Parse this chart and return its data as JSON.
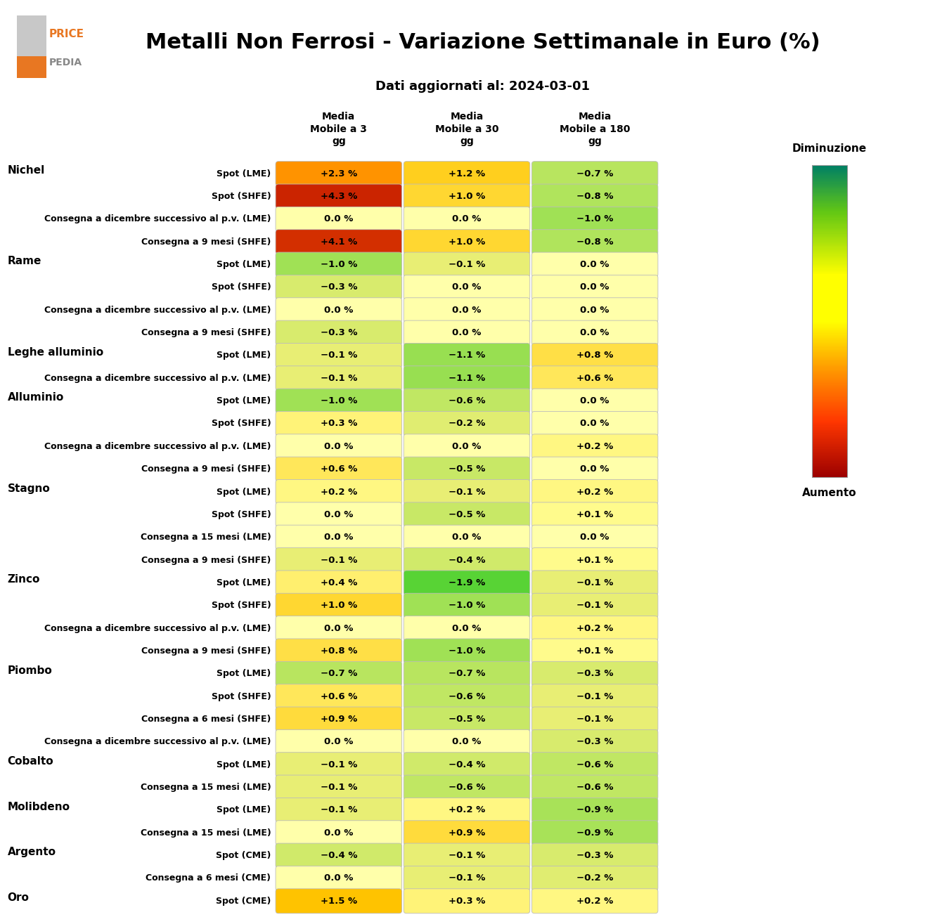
{
  "title": "Metalli Non Ferrosi - Variazione Settimanale in Euro (%)",
  "subtitle": "Dati aggiornati al: 2024-03-01",
  "col_headers": [
    "Media\nMobile a 3\ngg",
    "Media\nMobile a 30\ngg",
    "Media\nMobile a 180\ngg"
  ],
  "legend_top": "Diminuzione",
  "legend_bottom": "Aumento",
  "rows": [
    {
      "label": "Spot (LME)",
      "group": "Nichel",
      "vals": [
        2.3,
        1.2,
        -0.7
      ]
    },
    {
      "label": "Spot (SHFE)",
      "group": "Nichel",
      "vals": [
        4.3,
        1.0,
        -0.8
      ]
    },
    {
      "label": "Consegna a dicembre successivo al p.v. (LME)",
      "group": "Nichel",
      "vals": [
        0.0,
        0.0,
        -1.0
      ]
    },
    {
      "label": "Consegna a 9 mesi (SHFE)",
      "group": "Nichel",
      "vals": [
        4.1,
        1.0,
        -0.8
      ]
    },
    {
      "label": "Spot (LME)",
      "group": "Rame",
      "vals": [
        -1.0,
        -0.1,
        0.0
      ]
    },
    {
      "label": "Spot (SHFE)",
      "group": "Rame",
      "vals": [
        -0.3,
        0.0,
        0.0
      ]
    },
    {
      "label": "Consegna a dicembre successivo al p.v. (LME)",
      "group": "Rame",
      "vals": [
        0.0,
        0.0,
        0.0
      ]
    },
    {
      "label": "Consegna a 9 mesi (SHFE)",
      "group": "Rame",
      "vals": [
        -0.3,
        0.0,
        0.0
      ]
    },
    {
      "label": "Spot (LME)",
      "group": "Leghe alluminio",
      "vals": [
        -0.1,
        -1.1,
        0.8
      ]
    },
    {
      "label": "Consegna a dicembre successivo al p.v. (LME)",
      "group": "Leghe alluminio",
      "vals": [
        -0.1,
        -1.1,
        0.6
      ]
    },
    {
      "label": "Spot (LME)",
      "group": "Alluminio",
      "vals": [
        -1.0,
        -0.6,
        0.0
      ]
    },
    {
      "label": "Spot (SHFE)",
      "group": "Alluminio",
      "vals": [
        0.3,
        -0.2,
        0.0
      ]
    },
    {
      "label": "Consegna a dicembre successivo al p.v. (LME)",
      "group": "Alluminio",
      "vals": [
        0.0,
        0.0,
        0.2
      ]
    },
    {
      "label": "Consegna a 9 mesi (SHFE)",
      "group": "Alluminio",
      "vals": [
        0.6,
        -0.5,
        0.0
      ]
    },
    {
      "label": "Spot (LME)",
      "group": "Stagno",
      "vals": [
        0.2,
        -0.1,
        0.2
      ]
    },
    {
      "label": "Spot (SHFE)",
      "group": "Stagno",
      "vals": [
        0.0,
        -0.5,
        0.1
      ]
    },
    {
      "label": "Consegna a 15 mesi (LME)",
      "group": "Stagno",
      "vals": [
        0.0,
        0.0,
        0.0
      ]
    },
    {
      "label": "Consegna a 9 mesi (SHFE)",
      "group": "Stagno",
      "vals": [
        -0.1,
        -0.4,
        0.1
      ]
    },
    {
      "label": "Spot (LME)",
      "group": "Zinco",
      "vals": [
        0.4,
        -1.9,
        -0.1
      ]
    },
    {
      "label": "Spot (SHFE)",
      "group": "Zinco",
      "vals": [
        1.0,
        -1.0,
        -0.1
      ]
    },
    {
      "label": "Consegna a dicembre successivo al p.v. (LME)",
      "group": "Zinco",
      "vals": [
        0.0,
        0.0,
        0.2
      ]
    },
    {
      "label": "Consegna a 9 mesi (SHFE)",
      "group": "Zinco",
      "vals": [
        0.8,
        -1.0,
        0.1
      ]
    },
    {
      "label": "Spot (LME)",
      "group": "Piombo",
      "vals": [
        -0.7,
        -0.7,
        -0.3
      ]
    },
    {
      "label": "Spot (SHFE)",
      "group": "Piombo",
      "vals": [
        0.6,
        -0.6,
        -0.1
      ]
    },
    {
      "label": "Consegna a 6 mesi (SHFE)",
      "group": "Piombo",
      "vals": [
        0.9,
        -0.5,
        -0.1
      ]
    },
    {
      "label": "Consegna a dicembre successivo al p.v. (LME)",
      "group": "Piombo",
      "vals": [
        0.0,
        0.0,
        -0.3
      ]
    },
    {
      "label": "Spot (LME)",
      "group": "Cobalto",
      "vals": [
        -0.1,
        -0.4,
        -0.6
      ]
    },
    {
      "label": "Consegna a 15 mesi (LME)",
      "group": "Cobalto",
      "vals": [
        -0.1,
        -0.6,
        -0.6
      ]
    },
    {
      "label": "Spot (LME)",
      "group": "Molibdeno",
      "vals": [
        -0.1,
        0.2,
        -0.9
      ]
    },
    {
      "label": "Consegna a 15 mesi (LME)",
      "group": "Molibdeno",
      "vals": [
        0.0,
        0.9,
        -0.9
      ]
    },
    {
      "label": "Spot (CME)",
      "group": "Argento",
      "vals": [
        -0.4,
        -0.1,
        -0.3
      ]
    },
    {
      "label": "Consegna a 6 mesi (CME)",
      "group": "Argento",
      "vals": [
        0.0,
        -0.1,
        -0.2
      ]
    },
    {
      "label": "Spot (CME)",
      "group": "Oro",
      "vals": [
        1.5,
        0.3,
        0.2
      ]
    }
  ],
  "orange_color": "#E87722",
  "gray_color": "#888888",
  "title_fontsize": 22,
  "subtitle_fontsize": 13,
  "header_fontsize": 10,
  "group_fontsize": 11,
  "row_fontsize": 9,
  "cell_fontsize": 9.5,
  "vmax": 5.0,
  "vmin": -2.0
}
